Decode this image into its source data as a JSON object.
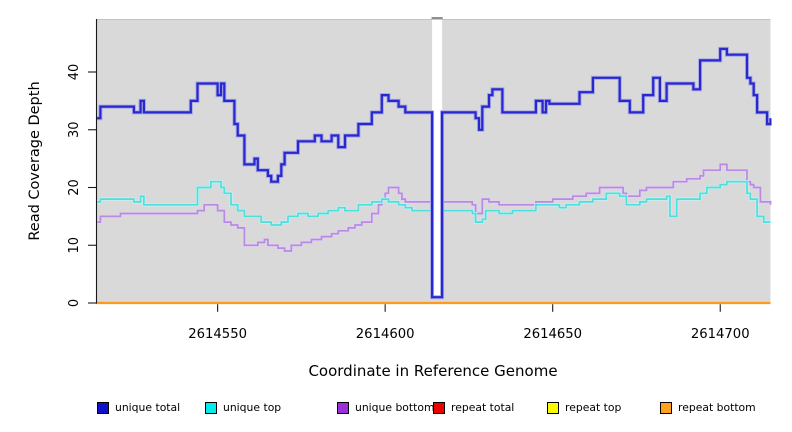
{
  "figure": {
    "colors": {
      "background": "#ffffff",
      "panel": "#d9d9d9",
      "panel_border": "#c3c3c3",
      "axis": "#1a1a1a",
      "text": "#000000",
      "gap_band": "#ffffff",
      "gap_cap": "#8f8f8f"
    }
  },
  "chart_data": {
    "type": "line",
    "step": true,
    "title": "",
    "xlabel": "Coordinate in Reference Genome",
    "ylabel": "Read Coverage Depth",
    "xlim": [
      2614514,
      2614715
    ],
    "ylim": [
      0,
      49.2
    ],
    "x_ticks": [
      2614550,
      2614600,
      2614650,
      2614700
    ],
    "y_ticks": [
      0,
      10,
      20,
      30,
      40
    ],
    "grid": false,
    "legend_position": "bottom",
    "gap_region": {
      "from": 2614614,
      "to": 2614617
    },
    "series": [
      {
        "name": "unique total",
        "color": "#2828cd",
        "halo": "#a6a6e8",
        "points": [
          [
            2614514,
            32
          ],
          [
            2614515,
            34
          ],
          [
            2614525,
            33
          ],
          [
            2614527,
            35
          ],
          [
            2614528,
            33
          ],
          [
            2614542,
            35
          ],
          [
            2614544,
            38
          ],
          [
            2614550,
            36
          ],
          [
            2614551,
            38
          ],
          [
            2614552,
            35
          ],
          [
            2614555,
            31
          ],
          [
            2614556,
            29
          ],
          [
            2614558,
            24
          ],
          [
            2614561,
            25
          ],
          [
            2614562,
            23
          ],
          [
            2614565,
            22
          ],
          [
            2614566,
            21
          ],
          [
            2614568,
            22
          ],
          [
            2614569,
            24
          ],
          [
            2614570,
            26
          ],
          [
            2614574,
            28
          ],
          [
            2614579,
            29
          ],
          [
            2614581,
            28
          ],
          [
            2614584,
            29
          ],
          [
            2614586,
            27
          ],
          [
            2614588,
            29
          ],
          [
            2614592,
            31
          ],
          [
            2614596,
            33
          ],
          [
            2614599,
            36
          ],
          [
            2614601,
            35
          ],
          [
            2614604,
            34
          ],
          [
            2614606,
            33
          ],
          [
            2614614,
            1
          ],
          [
            2614617,
            33
          ],
          [
            2614627,
            32
          ],
          [
            2614628,
            30
          ],
          [
            2614629,
            34
          ],
          [
            2614631,
            36
          ],
          [
            2614632,
            37
          ],
          [
            2614635,
            33
          ],
          [
            2614645,
            35
          ],
          [
            2614647,
            33
          ],
          [
            2614648,
            35
          ],
          [
            2614649,
            34.5
          ],
          [
            2614658,
            36.5
          ],
          [
            2614662,
            39
          ],
          [
            2614670,
            35
          ],
          [
            2614673,
            33
          ],
          [
            2614677,
            36
          ],
          [
            2614680,
            39
          ],
          [
            2614682,
            35
          ],
          [
            2614684,
            38
          ],
          [
            2614692,
            37
          ],
          [
            2614694,
            42
          ],
          [
            2614700,
            44
          ],
          [
            2614702,
            43
          ],
          [
            2614708,
            39
          ],
          [
            2614709,
            38
          ],
          [
            2614710,
            36
          ],
          [
            2614711,
            33
          ],
          [
            2614714,
            31
          ],
          [
            2614715,
            32
          ]
        ]
      },
      {
        "name": "unique top",
        "color": "#4fdede",
        "halo": "#c6f1f1",
        "points": [
          [
            2614514,
            17.5
          ],
          [
            2614515,
            18
          ],
          [
            2614525,
            17.5
          ],
          [
            2614527,
            18.5
          ],
          [
            2614528,
            17
          ],
          [
            2614544,
            20
          ],
          [
            2614548,
            21
          ],
          [
            2614551,
            20
          ],
          [
            2614552,
            19
          ],
          [
            2614554,
            17
          ],
          [
            2614556,
            16
          ],
          [
            2614558,
            15
          ],
          [
            2614563,
            14
          ],
          [
            2614566,
            13.5
          ],
          [
            2614569,
            14
          ],
          [
            2614571,
            15
          ],
          [
            2614574,
            15.5
          ],
          [
            2614577,
            15
          ],
          [
            2614580,
            15.5
          ],
          [
            2614583,
            16
          ],
          [
            2614586,
            16.5
          ],
          [
            2614588,
            16
          ],
          [
            2614592,
            17
          ],
          [
            2614596,
            17.5
          ],
          [
            2614599,
            18
          ],
          [
            2614601,
            17.5
          ],
          [
            2614604,
            17
          ],
          [
            2614606,
            16.5
          ],
          [
            2614608,
            16
          ],
          [
            2614614,
            null
          ],
          [
            2614617,
            16
          ],
          [
            2614626,
            15.5
          ],
          [
            2614627,
            14
          ],
          [
            2614629,
            14.5
          ],
          [
            2614630,
            16
          ],
          [
            2614634,
            15.5
          ],
          [
            2614638,
            16
          ],
          [
            2614645,
            17
          ],
          [
            2614652,
            16.5
          ],
          [
            2614654,
            17
          ],
          [
            2614658,
            17.5
          ],
          [
            2614662,
            18
          ],
          [
            2614666,
            19
          ],
          [
            2614670,
            18.5
          ],
          [
            2614672,
            17
          ],
          [
            2614676,
            17.5
          ],
          [
            2614678,
            18
          ],
          [
            2614684,
            18.5
          ],
          [
            2614685,
            15
          ],
          [
            2614687,
            18
          ],
          [
            2614694,
            19
          ],
          [
            2614696,
            20
          ],
          [
            2614700,
            20.5
          ],
          [
            2614702,
            21
          ],
          [
            2614708,
            19
          ],
          [
            2614709,
            18
          ],
          [
            2614711,
            15
          ],
          [
            2614713,
            14
          ],
          [
            2614715,
            14
          ]
        ]
      },
      {
        "name": "unique bottom",
        "color": "#b98ae2",
        "halo": "#e3d3f3",
        "points": [
          [
            2614514,
            14
          ],
          [
            2614515,
            15
          ],
          [
            2614521,
            15.5
          ],
          [
            2614544,
            16
          ],
          [
            2614546,
            17
          ],
          [
            2614550,
            16
          ],
          [
            2614552,
            14
          ],
          [
            2614554,
            13.5
          ],
          [
            2614556,
            13
          ],
          [
            2614558,
            10
          ],
          [
            2614562,
            10.5
          ],
          [
            2614564,
            11
          ],
          [
            2614565,
            10
          ],
          [
            2614568,
            9.5
          ],
          [
            2614570,
            9
          ],
          [
            2614572,
            10
          ],
          [
            2614575,
            10.5
          ],
          [
            2614578,
            11
          ],
          [
            2614581,
            11.5
          ],
          [
            2614584,
            12
          ],
          [
            2614586,
            12.5
          ],
          [
            2614589,
            13
          ],
          [
            2614591,
            13.5
          ],
          [
            2614593,
            14
          ],
          [
            2614596,
            15.5
          ],
          [
            2614598,
            17
          ],
          [
            2614599,
            18
          ],
          [
            2614600,
            19
          ],
          [
            2614601,
            20
          ],
          [
            2614604,
            19
          ],
          [
            2614605,
            18
          ],
          [
            2614606,
            17.5
          ],
          [
            2614614,
            null
          ],
          [
            2614617,
            17.5
          ],
          [
            2614626,
            17
          ],
          [
            2614627,
            15.5
          ],
          [
            2614629,
            18
          ],
          [
            2614631,
            17.5
          ],
          [
            2614634,
            17
          ],
          [
            2614645,
            17.5
          ],
          [
            2614650,
            18
          ],
          [
            2614656,
            18.5
          ],
          [
            2614660,
            19
          ],
          [
            2614664,
            20
          ],
          [
            2614671,
            19
          ],
          [
            2614672,
            18.5
          ],
          [
            2614676,
            19.5
          ],
          [
            2614678,
            20
          ],
          [
            2614686,
            21
          ],
          [
            2614690,
            21.5
          ],
          [
            2614694,
            22
          ],
          [
            2614695,
            23
          ],
          [
            2614700,
            24
          ],
          [
            2614702,
            23
          ],
          [
            2614708,
            21
          ],
          [
            2614709,
            20.5
          ],
          [
            2614710,
            20
          ],
          [
            2614712,
            17.5
          ],
          [
            2614715,
            17
          ]
        ]
      },
      {
        "name": "repeat total",
        "color": "#e01010",
        "halo": "",
        "points": [
          [
            2614514,
            0
          ],
          [
            2614715,
            0
          ]
        ]
      },
      {
        "name": "repeat top",
        "color": "#f2f200",
        "halo": "",
        "points": [
          [
            2614514,
            0
          ],
          [
            2614715,
            0
          ]
        ]
      },
      {
        "name": "repeat bottom",
        "color": "#ff981c",
        "halo": "#ffd9a0",
        "points": [
          [
            2614514,
            0
          ],
          [
            2614715,
            0
          ]
        ]
      }
    ]
  },
  "legend": {
    "items": [
      {
        "label": "unique total",
        "color": "#1111cc"
      },
      {
        "label": "unique top",
        "color": "#00eded"
      },
      {
        "label": "unique bottom",
        "color": "#9c2fd9"
      },
      {
        "label": "repeat total",
        "color": "#ee0000"
      },
      {
        "label": "repeat top",
        "color": "#fbfb00"
      },
      {
        "label": "repeat bottom",
        "color": "#ffa11c"
      }
    ]
  }
}
